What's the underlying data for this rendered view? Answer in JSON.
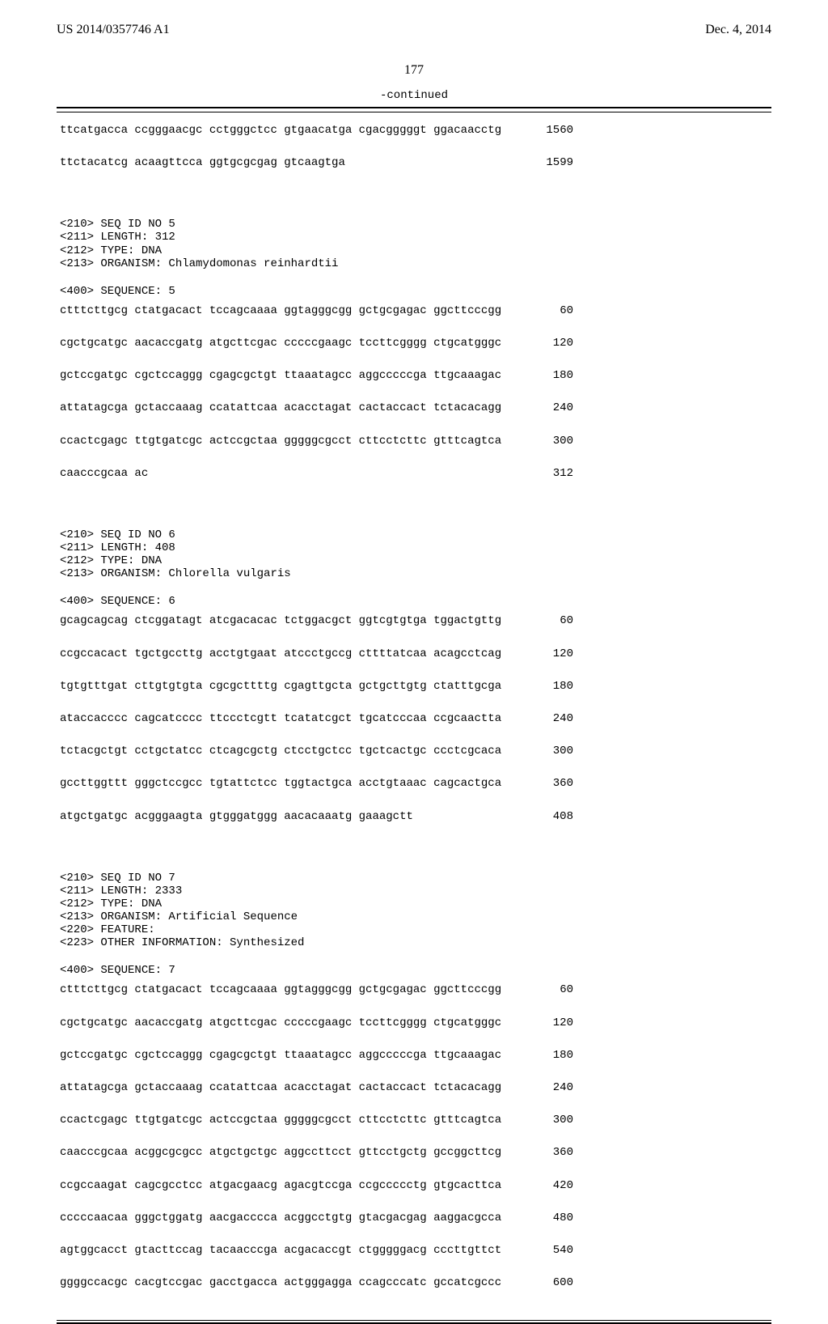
{
  "header": {
    "pub_number": "US 2014/0357746 A1",
    "pub_date": "Dec. 4, 2014"
  },
  "page_number": "177",
  "continued_label": "-continued",
  "blocks": [
    {
      "type": "seq",
      "seq": "ttcatgacca ccgggaacgc cctgggctcc gtgaacatga cgacgggggt ggacaacctg",
      "num": "1560"
    },
    {
      "type": "seq",
      "seq": "ttctacatcg acaagttcca ggtgcgcgag gtcaagtga",
      "num": "1599"
    },
    {
      "type": "spacer"
    },
    {
      "type": "meta",
      "lines": [
        "<210> SEQ ID NO 5",
        "<211> LENGTH: 312",
        "<212> TYPE: DNA",
        "<213> ORGANISM: Chlamydomonas reinhardtii"
      ]
    },
    {
      "type": "smallspacer"
    },
    {
      "type": "text",
      "text": "<400> SEQUENCE: 5"
    },
    {
      "type": "smallspacer"
    },
    {
      "type": "seq",
      "seq": "ctttcttgcg ctatgacact tccagcaaaa ggtagggcgg gctgcgagac ggcttcccgg",
      "num": "60"
    },
    {
      "type": "seq",
      "seq": "cgctgcatgc aacaccgatg atgcttcgac cccccgaagc tccttcgggg ctgcatgggc",
      "num": "120"
    },
    {
      "type": "seq",
      "seq": "gctccgatgc cgctccaggg cgagcgctgt ttaaatagcc aggcccccga ttgcaaagac",
      "num": "180"
    },
    {
      "type": "seq",
      "seq": "attatagcga gctaccaaag ccatattcaa acacctagat cactaccact tctacacagg",
      "num": "240"
    },
    {
      "type": "seq",
      "seq": "ccactcgagc ttgtgatcgc actccgctaa gggggcgcct cttcctcttc gtttcagtca",
      "num": "300"
    },
    {
      "type": "seq",
      "seq": "caacccgcaa ac",
      "num": "312"
    },
    {
      "type": "spacer"
    },
    {
      "type": "meta",
      "lines": [
        "<210> SEQ ID NO 6",
        "<211> LENGTH: 408",
        "<212> TYPE: DNA",
        "<213> ORGANISM: Chlorella vulgaris"
      ]
    },
    {
      "type": "smallspacer"
    },
    {
      "type": "text",
      "text": "<400> SEQUENCE: 6"
    },
    {
      "type": "smallspacer"
    },
    {
      "type": "seq",
      "seq": "gcagcagcag ctcggatagt atcgacacac tctggacgct ggtcgtgtga tggactgttg",
      "num": "60"
    },
    {
      "type": "seq",
      "seq": "ccgccacact tgctgccttg acctgtgaat atccctgccg cttttatcaa acagcctcag",
      "num": "120"
    },
    {
      "type": "seq",
      "seq": "tgtgtttgat cttgtgtgta cgcgcttttg cgagttgcta gctgcttgtg ctatttgcga",
      "num": "180"
    },
    {
      "type": "seq",
      "seq": "ataccacccc cagcatcccc ttccctcgtt tcatatcgct tgcatcccaa ccgcaactta",
      "num": "240"
    },
    {
      "type": "seq",
      "seq": "tctacgctgt cctgctatcc ctcagcgctg ctcctgctcc tgctcactgc ccctcgcaca",
      "num": "300"
    },
    {
      "type": "seq",
      "seq": "gccttggttt gggctccgcc tgtattctcc tggtactgca acctgtaaac cagcactgca",
      "num": "360"
    },
    {
      "type": "seq",
      "seq": "atgctgatgc acgggaagta gtgggatggg aacacaaatg gaaagctt",
      "num": "408"
    },
    {
      "type": "spacer"
    },
    {
      "type": "meta",
      "lines": [
        "<210> SEQ ID NO 7",
        "<211> LENGTH: 2333",
        "<212> TYPE: DNA",
        "<213> ORGANISM: Artificial Sequence",
        "<220> FEATURE:",
        "<223> OTHER INFORMATION: Synthesized"
      ]
    },
    {
      "type": "smallspacer"
    },
    {
      "type": "text",
      "text": "<400> SEQUENCE: 7"
    },
    {
      "type": "smallspacer"
    },
    {
      "type": "seq",
      "seq": "ctttcttgcg ctatgacact tccagcaaaa ggtagggcgg gctgcgagac ggcttcccgg",
      "num": "60"
    },
    {
      "type": "seq",
      "seq": "cgctgcatgc aacaccgatg atgcttcgac cccccgaagc tccttcgggg ctgcatgggc",
      "num": "120"
    },
    {
      "type": "seq",
      "seq": "gctccgatgc cgctccaggg cgagcgctgt ttaaatagcc aggcccccga ttgcaaagac",
      "num": "180"
    },
    {
      "type": "seq",
      "seq": "attatagcga gctaccaaag ccatattcaa acacctagat cactaccact tctacacagg",
      "num": "240"
    },
    {
      "type": "seq",
      "seq": "ccactcgagc ttgtgatcgc actccgctaa gggggcgcct cttcctcttc gtttcagtca",
      "num": "300"
    },
    {
      "type": "seq",
      "seq": "caacccgcaa acggcgcgcc atgctgctgc aggccttcct gttcctgctg gccggcttcg",
      "num": "360"
    },
    {
      "type": "seq",
      "seq": "ccgccaagat cagcgcctcc atgacgaacg agacgtccga ccgccccctg gtgcacttca",
      "num": "420"
    },
    {
      "type": "seq",
      "seq": "cccccaacaa gggctggatg aacgacccca acggcctgtg gtacgacgag aaggacgcca",
      "num": "480"
    },
    {
      "type": "seq",
      "seq": "agtggcacct gtacttccag tacaacccga acgacaccgt ctgggggacg cccttgttct",
      "num": "540"
    },
    {
      "type": "seq",
      "seq": "ggggccacgc cacgtccgac gacctgacca actgggagga ccagcccatc gccatcgccc",
      "num": "600"
    }
  ]
}
